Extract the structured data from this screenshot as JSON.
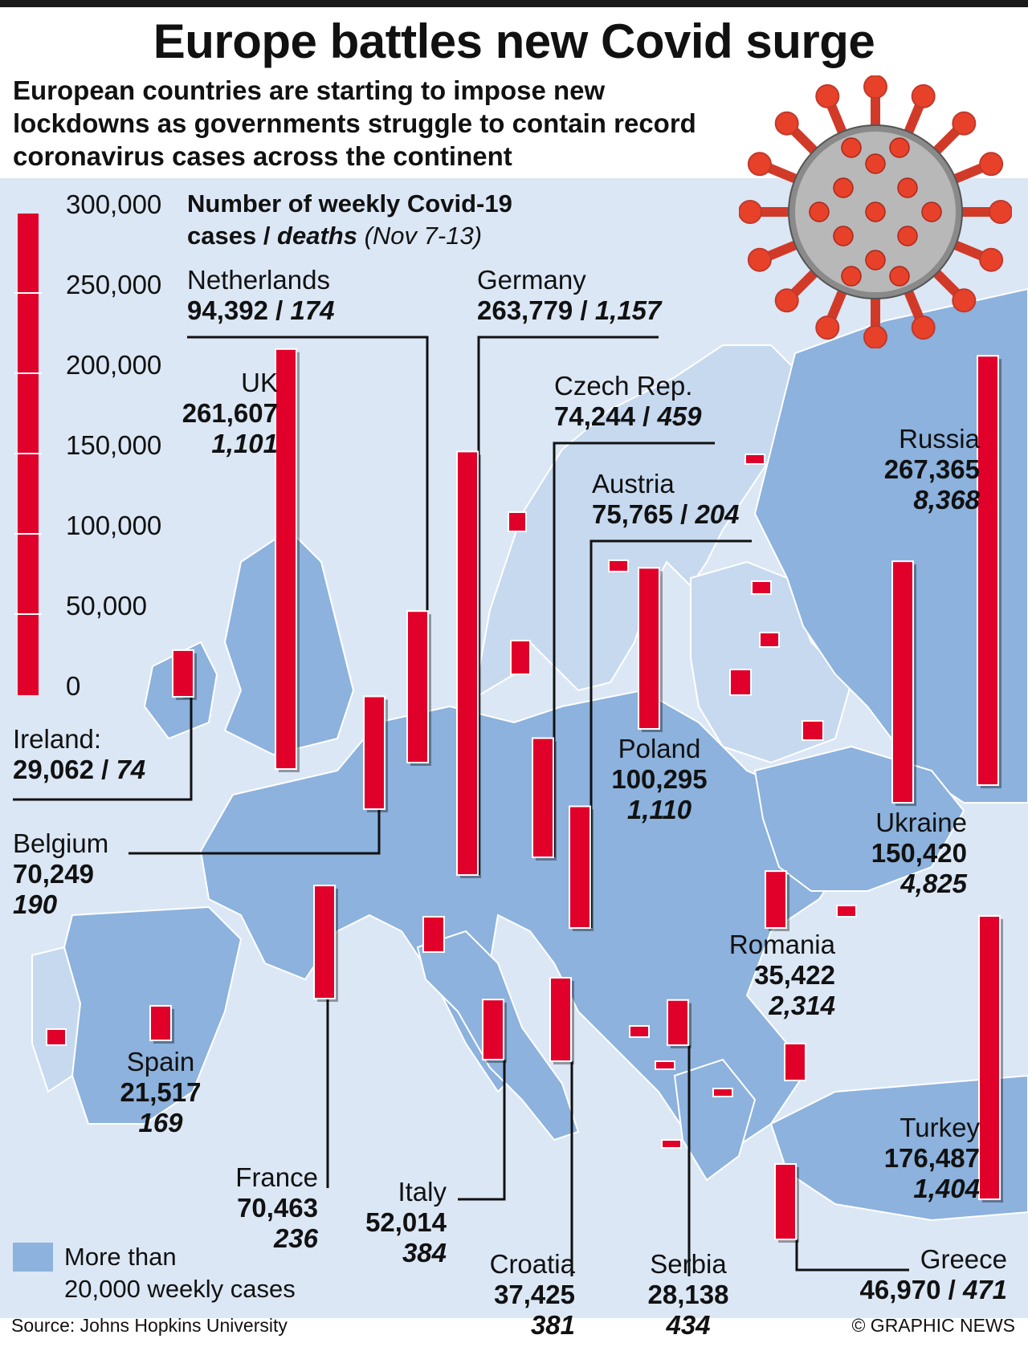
{
  "title": "Europe battles new Covid surge",
  "subtitle": "European countries are starting to impose new lockdowns as governments struggle to contain record coronavirus cases across the continent",
  "chart_title_main": "Number of weekly Covid-19",
  "chart_title_cases": "cases / ",
  "chart_title_deaths": "deaths",
  "chart_title_period": " (Nov 7-13)",
  "scale": {
    "labels": [
      "300,000",
      "250,000",
      "200,000",
      "150,000",
      "100,000",
      "50,000",
      "0"
    ]
  },
  "legend": {
    "line1": "More than",
    "line2": "20,000 weekly cases"
  },
  "source": "Source: Johns Hopkins University",
  "credit": "© GRAPHIC NEWS",
  "colors": {
    "bar": "#e0002a",
    "highlight": "#8cb2dd",
    "land_light": "#c6d9ef",
    "sea": "#dbe7f5"
  },
  "chart_data": {
    "type": "bar",
    "categories": [
      "Ireland",
      "UK",
      "Belgium",
      "Netherlands",
      "Germany",
      "Czech Rep.",
      "Austria",
      "Poland",
      "Ukraine",
      "Russia",
      "Romania",
      "Turkey",
      "Greece",
      "Serbia",
      "Croatia",
      "Italy",
      "France",
      "Spain"
    ],
    "series": [
      {
        "values": [
          29062,
          261607,
          70249,
          94392,
          263779,
          74244,
          75765,
          100295,
          150420,
          267365,
          35422,
          176487,
          46970,
          28138,
          37425,
          52014,
          70463,
          21517
        ]
      }
    ],
    "deaths": [
      74,
      1101,
      190,
      174,
      1157,
      459,
      204,
      1110,
      4825,
      8368,
      2314,
      1404,
      471,
      434,
      381,
      384,
      236,
      169
    ],
    "ylim": [
      0,
      300000
    ]
  },
  "labels": {
    "ireland": {
      "name": "Ireland:",
      "cases": "29,062",
      "deaths": "74"
    },
    "uk": {
      "name": "UK",
      "cases": "261,607",
      "deaths": "1,101"
    },
    "belgium": {
      "name": "Belgium",
      "cases": "70,249",
      "deaths": "190"
    },
    "netherlands": {
      "name": "Netherlands",
      "cases": "94,392",
      "deaths": "174"
    },
    "germany": {
      "name": "Germany",
      "cases": "263,779",
      "deaths": "1,157"
    },
    "czech": {
      "name": "Czech Rep.",
      "cases": "74,244",
      "deaths": "459"
    },
    "austria": {
      "name": "Austria",
      "cases": "75,765",
      "deaths": "204"
    },
    "poland": {
      "name": "Poland",
      "cases": "100,295",
      "deaths": "1,110"
    },
    "ukraine": {
      "name": "Ukraine",
      "cases": "150,420",
      "deaths": "4,825"
    },
    "russia": {
      "name": "Russia",
      "cases": "267,365",
      "deaths": "8,368"
    },
    "romania": {
      "name": "Romania",
      "cases": "35,422",
      "deaths": "2,314"
    },
    "turkey": {
      "name": "Turkey",
      "cases": "176,487",
      "deaths": "1,404"
    },
    "greece": {
      "name": "Greece",
      "cases": "46,970",
      "deaths": "471"
    },
    "serbia": {
      "name": "Serbia",
      "cases": "28,138",
      "deaths": "434"
    },
    "croatia": {
      "name": "Croatia",
      "cases": "37,425",
      "deaths": "381"
    },
    "italy": {
      "name": "Italy",
      "cases": "52,014",
      "deaths": "384"
    },
    "france": {
      "name": "France",
      "cases": "70,463",
      "deaths": "236"
    },
    "spain": {
      "name": "Spain",
      "cases": "21,517",
      "deaths": "169"
    }
  }
}
